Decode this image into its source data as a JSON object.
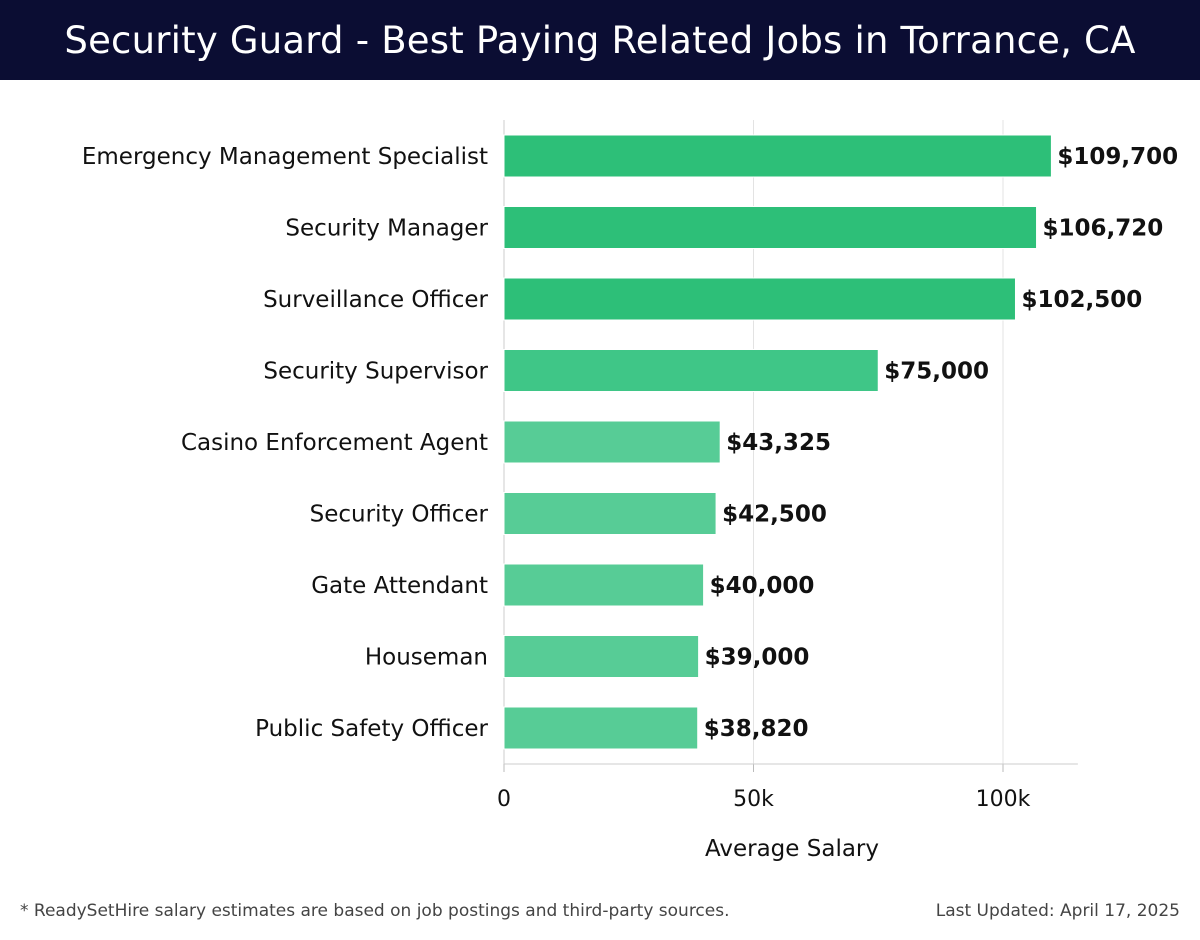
{
  "header": {
    "title": "Security Guard - Best Paying Related Jobs in Torrance, CA"
  },
  "chart_data": {
    "type": "bar",
    "orientation": "horizontal",
    "title": "Security Guard - Best Paying Related Jobs in Torrance, CA",
    "xlabel": "Average Salary",
    "ylabel": "",
    "xlim": [
      0,
      115000
    ],
    "xticks": [
      0,
      50000,
      100000
    ],
    "xtick_labels": [
      "0",
      "50k",
      "100k"
    ],
    "grid": true,
    "categories": [
      "Emergency Management Specialist",
      "Security Manager",
      "Surveillance Officer",
      "Security Supervisor",
      "Casino Enforcement Agent",
      "Security Officer",
      "Gate Attendant",
      "Houseman",
      "Public Safety Officer"
    ],
    "values": [
      109700,
      106720,
      102500,
      75000,
      43325,
      42500,
      40000,
      39000,
      38820
    ],
    "value_labels": [
      "$109,700",
      "$106,720",
      "$102,500",
      "$75,000",
      "$43,325",
      "$42,500",
      "$40,000",
      "$39,000",
      "$38,820"
    ],
    "bar_colors": [
      "#2dbf78",
      "#2dbf78",
      "#2dbf78",
      "#3fc687",
      "#57cc96",
      "#57cc96",
      "#57cc96",
      "#57cc96",
      "#57cc96"
    ]
  },
  "footer": {
    "note": "* ReadySetHire salary estimates are based on job postings and third-party sources.",
    "updated": "Last Updated: April 17, 2025"
  }
}
